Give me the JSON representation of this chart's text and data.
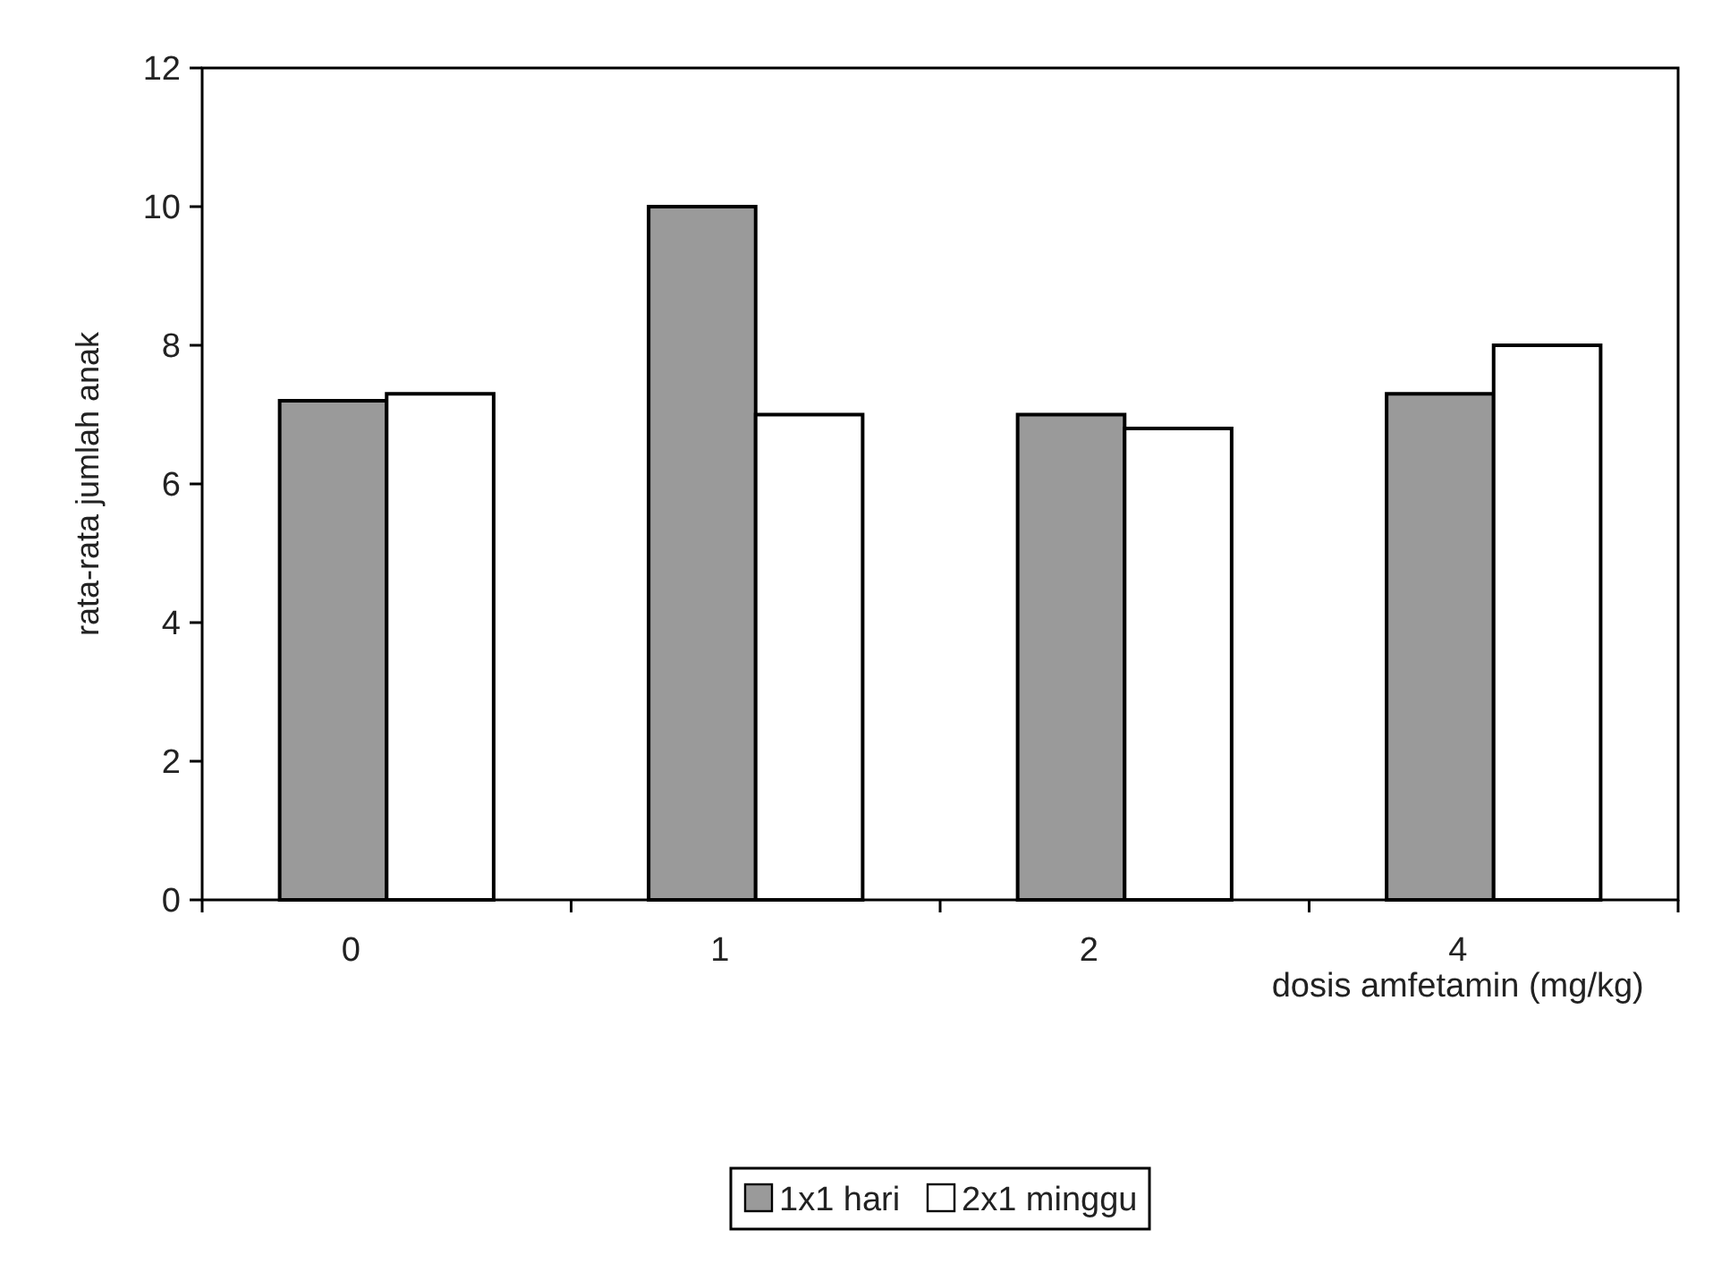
{
  "chart_data": {
    "type": "bar",
    "categories": [
      "0",
      "1",
      "2",
      "4"
    ],
    "xlabel": "dosis amfetamin (mg/kg)",
    "ylabel": "rata-rata jumlah anak",
    "ylim": [
      0,
      12
    ],
    "yticks": [
      0,
      2,
      4,
      6,
      8,
      10,
      12
    ],
    "legend": "bottom",
    "grid": false,
    "series": [
      {
        "name": "1x1 hari",
        "color": "#9a9a9a",
        "values": [
          7.2,
          10.0,
          7.0,
          7.3
        ]
      },
      {
        "name": "2x1 minggu",
        "color": "#ffffff",
        "values": [
          7.3,
          7.0,
          6.8,
          8.0
        ]
      }
    ]
  }
}
